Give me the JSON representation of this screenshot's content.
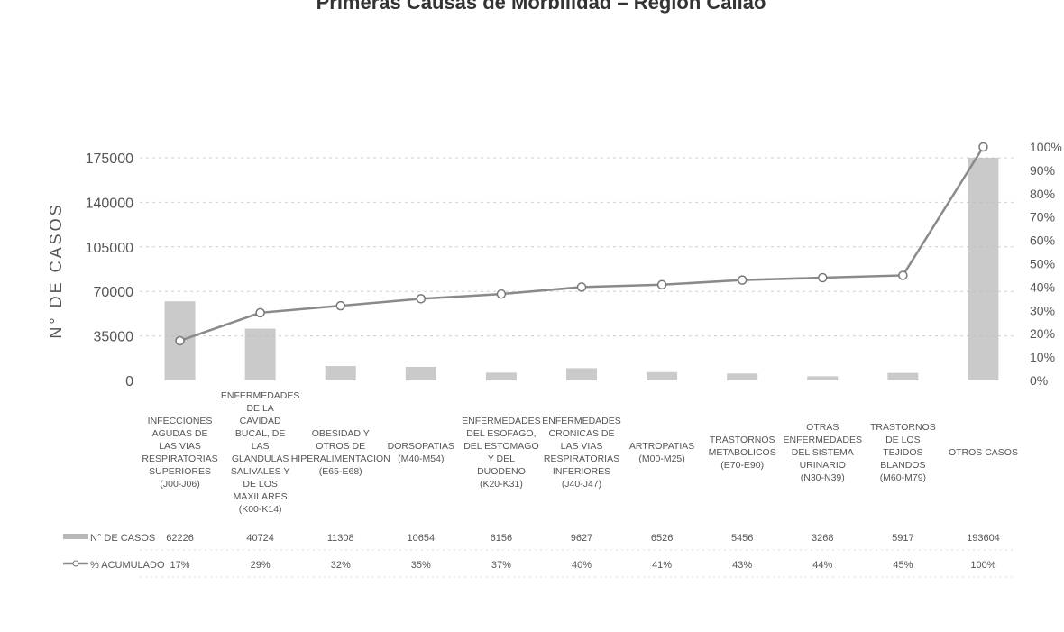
{
  "chart_data": {
    "type": "bar",
    "title": "Primeras Causas de Morbilidad – Región Callao",
    "ylabel": "N° DE CASOS",
    "ylim": [
      0,
      175000
    ],
    "y_ticks": [
      "175000",
      "140000",
      "105000",
      "70000",
      "35000",
      "0"
    ],
    "y2_ticks": [
      "100%",
      "90%",
      "80%",
      "70%",
      "60%",
      "50%",
      "40%",
      "30%",
      "20%",
      "10%",
      "0%"
    ],
    "grid": true,
    "categories": [
      "INFECCIONES AGUDAS DE LAS VIAS RESPIRATORIAS SUPERIORES (J00-J06)",
      "ENFERMEDADES DE LA CAVIDAD BUCAL, DE LAS GLANDULAS SALIVALES Y DE LOS MAXILARES (K00-K14)",
      "OBESIDAD Y OTROS DE HIPERALIMENTACION (E65-E68)",
      "DORSOPATIAS (M40-M54)",
      "ENFERMEDADES DEL ESOFAGO, DEL ESTOMAGO Y DEL DUODENO (K20-K31)",
      "ENFERMEDADES CRONICAS DE LAS VIAS RESPIRATORIAS INFERIORES (J40-J47)",
      "ARTROPATIAS (M00-M25)",
      "TRASTORNOS METABOLICOS (E70-E90)",
      "OTRAS ENFERMEDADES DEL SISTEMA URINARIO (N30-N39)",
      "TRASTORNOS DE LOS TEJIDOS BLANDOS (M60-M79)",
      "OTROS CASOS"
    ],
    "series": [
      {
        "name": "N° DE CASOS",
        "kind": "bar",
        "color": "#b8b8b8",
        "values": [
          62226,
          40724,
          11308,
          10654,
          6156,
          9627,
          6526,
          5456,
          3268,
          5917,
          193604
        ],
        "labels": [
          "62226",
          "40724",
          "11308",
          "10654",
          "6156",
          "9627",
          "6526",
          "5456",
          "3268",
          "5917",
          "193604"
        ]
      },
      {
        "name": "% ACUMULADO",
        "kind": "line",
        "axis": "right",
        "color": "#8a8a8a",
        "values": [
          17,
          29,
          32,
          35,
          37,
          40,
          41,
          43,
          44,
          45,
          100
        ],
        "labels": [
          "17%",
          "29%",
          "32%",
          "35%",
          "37%",
          "40%",
          "41%",
          "43%",
          "44%",
          "45%",
          "100%"
        ]
      }
    ]
  }
}
